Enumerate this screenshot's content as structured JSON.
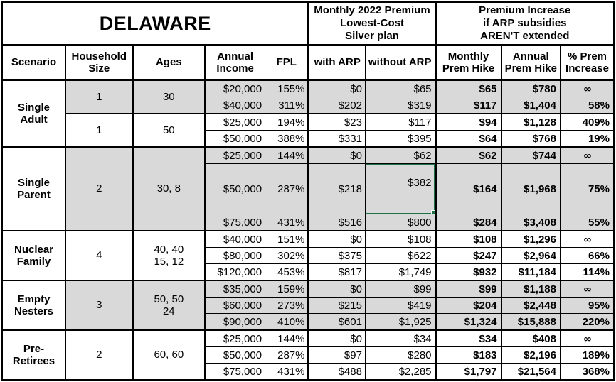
{
  "colors": {
    "shaded_row": "#d9d9d9",
    "selection_green": "#1e7245",
    "border": "#000000",
    "background": "#ffffff"
  },
  "table": {
    "title": "DELAWARE",
    "premium_header": "Monthly 2022 Premium\nLowest-Cost\nSilver plan",
    "increase_header": "Premium Increase\nif ARP subsidies\nAREN'T extended",
    "columns": {
      "scenario": "Scenario",
      "household": "Household\nSize",
      "ages": "Ages",
      "income": "Annual\nIncome",
      "fpl": "FPL",
      "with_arp": "with ARP",
      "without_arp": "without ARP",
      "monthly_hike": "Monthly\nPrem Hike",
      "annual_hike": "Annual\nPrem Hike",
      "pct_increase": "% Prem\nIncrease"
    },
    "scenario_labels": [
      "Single\nAdult",
      "Single\nParent",
      "Nuclear\nFamily",
      "Empty\nNesters",
      "Pre-\nRetirees"
    ],
    "spans": [
      {
        "household": "1",
        "ages": "30"
      },
      {
        "household": "1",
        "ages": "50"
      },
      {
        "household": "2",
        "ages": "30, 8"
      },
      {
        "household": "4",
        "ages": "40, 40\n15, 12"
      },
      {
        "household": "3",
        "ages": "50, 50\n24"
      },
      {
        "household": "2",
        "ages": "60, 60"
      }
    ],
    "rows": [
      {
        "income": "$20,000",
        "fpl": "155%",
        "with_arp": "$0",
        "without_arp": "$65",
        "monthly": "$65",
        "annual": "$780",
        "pct": "∞"
      },
      {
        "income": "$40,000",
        "fpl": "311%",
        "with_arp": "$202",
        "without_arp": "$319",
        "monthly": "$117",
        "annual": "$1,404",
        "pct": "58%"
      },
      {
        "income": "$25,000",
        "fpl": "194%",
        "with_arp": "$23",
        "without_arp": "$117",
        "monthly": "$94",
        "annual": "$1,128",
        "pct": "409%"
      },
      {
        "income": "$50,000",
        "fpl": "388%",
        "with_arp": "$331",
        "without_arp": "$395",
        "monthly": "$64",
        "annual": "$768",
        "pct": "19%"
      },
      {
        "income": "$25,000",
        "fpl": "144%",
        "with_arp": "$0",
        "without_arp": "$62",
        "monthly": "$62",
        "annual": "$744",
        "pct": "∞"
      },
      {
        "income": "$50,000",
        "fpl": "287%",
        "with_arp": "$218",
        "without_arp": "$382",
        "monthly": "$164",
        "annual": "$1,968",
        "pct": "75%"
      },
      {
        "income": "$75,000",
        "fpl": "431%",
        "with_arp": "$516",
        "without_arp": "$800",
        "monthly": "$284",
        "annual": "$3,408",
        "pct": "55%"
      },
      {
        "income": "$40,000",
        "fpl": "151%",
        "with_arp": "$0",
        "without_arp": "$108",
        "monthly": "$108",
        "annual": "$1,296",
        "pct": "∞"
      },
      {
        "income": "$80,000",
        "fpl": "302%",
        "with_arp": "$375",
        "without_arp": "$622",
        "monthly": "$247",
        "annual": "$2,964",
        "pct": "66%"
      },
      {
        "income": "$120,000",
        "fpl": "453%",
        "with_arp": "$817",
        "without_arp": "$1,749",
        "monthly": "$932",
        "annual": "$11,184",
        "pct": "114%"
      },
      {
        "income": "$35,000",
        "fpl": "159%",
        "with_arp": "$0",
        "without_arp": "$99",
        "monthly": "$99",
        "annual": "$1,188",
        "pct": "∞"
      },
      {
        "income": "$60,000",
        "fpl": "273%",
        "with_arp": "$215",
        "without_arp": "$419",
        "monthly": "$204",
        "annual": "$2,448",
        "pct": "95%"
      },
      {
        "income": "$90,000",
        "fpl": "410%",
        "with_arp": "$601",
        "without_arp": "$1,925",
        "monthly": "$1,324",
        "annual": "$15,888",
        "pct": "220%"
      },
      {
        "income": "$25,000",
        "fpl": "144%",
        "with_arp": "$0",
        "without_arp": "$34",
        "monthly": "$34",
        "annual": "$408",
        "pct": "∞"
      },
      {
        "income": "$50,000",
        "fpl": "287%",
        "with_arp": "$97",
        "without_arp": "$280",
        "monthly": "$183",
        "annual": "$2,196",
        "pct": "189%"
      },
      {
        "income": "$75,000",
        "fpl": "431%",
        "with_arp": "$488",
        "without_arp": "$2,285",
        "monthly": "$1,797",
        "annual": "$21,564",
        "pct": "368%"
      }
    ]
  }
}
